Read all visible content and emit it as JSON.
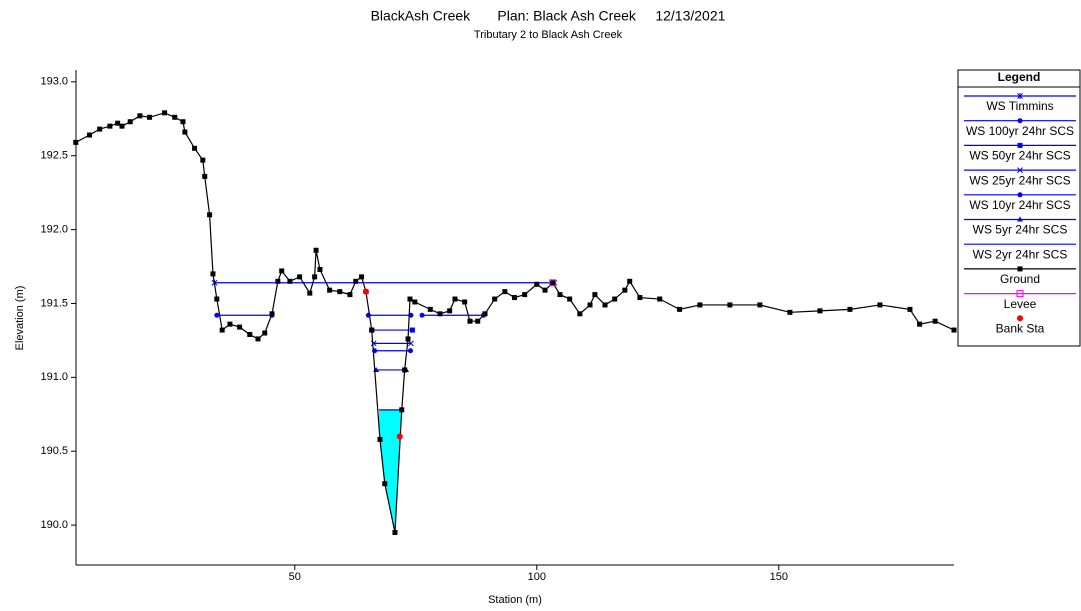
{
  "chart_data": {
    "type": "cross-section",
    "title": "BlackAsh Creek       Plan: Black Ash Creek     12/13/2021",
    "subtitle": "Tributary 2 to Black Ash Creek",
    "x_label": "Station (m)",
    "y_label": "Elevation (m)",
    "xlim": [
      4.8,
      186.2
    ],
    "ylim": [
      189.73,
      193.08
    ],
    "xticks": [
      50,
      100,
      150
    ],
    "yticks": [
      {
        "value": 190,
        "label": "190.0"
      },
      190.5,
      {
        "value": 191,
        "label": "191.0"
      },
      191.5,
      {
        "value": 192,
        "label": "192.0"
      },
      192.5,
      {
        "value": 193,
        "label": "193.0"
      }
    ],
    "legend_title": "Legend",
    "water_surfaces": [
      {
        "name": "WS Timmins",
        "color": "#0000ff",
        "marker": "star",
        "elevation": 191.64,
        "segments": [
          [
            33.4,
            103.6
          ]
        ]
      },
      {
        "name": "WS 100yr 24hr SCS",
        "color": "#0000ff",
        "marker": "circle",
        "elevation": 191.42,
        "segments": [
          [
            33.9,
            45.3
          ],
          [
            65.2,
            74.0
          ],
          [
            76.3,
            89.0
          ]
        ]
      },
      {
        "name": "WS 50yr 24hr SCS",
        "color": "#0000ff",
        "marker": "square",
        "elevation": 191.32,
        "segments": [
          [
            65.9,
            74.3
          ]
        ]
      },
      {
        "name": "WS 25yr 24hr SCS",
        "color": "#0000ff",
        "marker": "x",
        "elevation": 191.23,
        "segments": [
          [
            66.3,
            74.0
          ]
        ]
      },
      {
        "name": "WS 10yr 24hr SCS",
        "color": "#0000ff",
        "marker": "circle",
        "elevation": 191.18,
        "segments": [
          [
            66.5,
            73.9
          ]
        ]
      },
      {
        "name": "WS 5yr 24hr SCS",
        "color": "#0000ff",
        "marker": "triangle",
        "elevation": 191.05,
        "segments": [
          [
            66.8,
            73.0
          ]
        ]
      },
      {
        "name": "WS 2yr 24hr SCS",
        "color": "#0000ff",
        "marker": "none",
        "fill": "#00ffff",
        "elevation": 190.78,
        "segments": [
          [
            67.4,
            72.2
          ]
        ]
      }
    ],
    "ground": {
      "name": "Ground",
      "color": "#000000",
      "x": [
        4.75,
        7.6,
        9.7,
        11.8,
        13.4,
        14.3,
        16.0,
        18.0,
        20.0,
        23.1,
        25.2,
        26.9,
        27.3,
        29.3,
        31.0,
        31.4,
        32.4,
        33.1,
        33.9,
        35.0,
        36.6,
        38.6,
        40.7,
        42.4,
        43.8,
        45.3,
        46.5,
        47.3,
        49.0,
        51.0,
        53.1,
        54.1,
        54.4,
        55.2,
        57.2,
        59.3,
        61.4,
        62.6,
        63.8,
        64.7,
        65.9,
        67.6,
        68.6,
        70.7,
        72.1,
        72.7,
        73.4,
        73.8,
        74.8,
        78.0,
        80.0,
        82.0,
        83.1,
        85.1,
        86.2,
        87.8,
        89.3,
        91.3,
        93.4,
        95.4,
        97.5,
        100.0,
        101.7,
        103.3,
        104.8,
        106.8,
        108.9,
        111.0,
        112.0,
        114.1,
        116.1,
        118.2,
        119.2,
        121.3,
        125.4,
        129.5,
        133.7,
        139.9,
        146.1,
        152.3,
        158.5,
        164.7,
        170.9,
        177.1,
        179.1,
        182.3,
        186.2
      ],
      "values": [
        192.59,
        192.64,
        192.68,
        192.7,
        192.72,
        192.7,
        192.73,
        192.77,
        192.76,
        192.79,
        192.76,
        192.73,
        192.66,
        192.55,
        192.47,
        192.36,
        192.1,
        191.7,
        191.53,
        191.32,
        191.36,
        191.34,
        191.29,
        191.26,
        191.3,
        191.43,
        191.65,
        191.72,
        191.65,
        191.68,
        191.57,
        191.68,
        191.86,
        191.73,
        191.59,
        191.58,
        191.56,
        191.65,
        191.68,
        191.58,
        191.32,
        190.58,
        190.28,
        189.95,
        190.78,
        191.05,
        191.26,
        191.53,
        191.51,
        191.46,
        191.43,
        191.45,
        191.53,
        191.51,
        191.38,
        191.38,
        191.43,
        191.53,
        191.58,
        191.54,
        191.56,
        191.63,
        191.59,
        191.64,
        191.56,
        191.53,
        191.43,
        191.49,
        191.56,
        191.49,
        191.53,
        191.59,
        191.65,
        191.54,
        191.53,
        191.46,
        191.49,
        191.49,
        191.49,
        191.44,
        191.45,
        191.46,
        191.49,
        191.46,
        191.36,
        191.38,
        191.32
      ]
    },
    "levee": {
      "name": "Levee",
      "color": "#ff00ff",
      "x": [
        103.3
      ],
      "values": [
        191.64
      ]
    },
    "bank_sta": {
      "name": "Bank Sta",
      "color": "#ff0000",
      "x": [
        64.7,
        71.7
      ],
      "values": [
        191.58,
        190.6
      ]
    }
  }
}
